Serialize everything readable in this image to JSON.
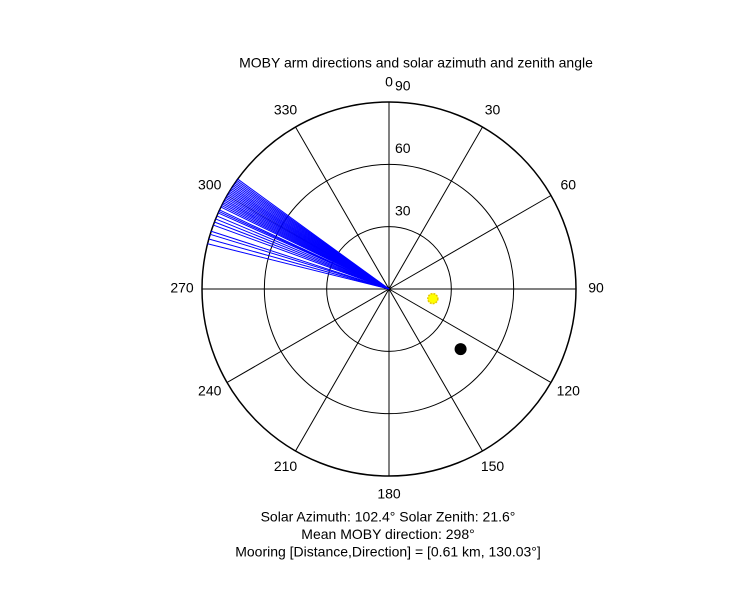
{
  "chart_data": {
    "type": "polar",
    "title": "MOBY arm directions and solar azimuth and zenith angle",
    "theta_ticks": [
      0,
      30,
      60,
      90,
      120,
      150,
      180,
      210,
      240,
      270,
      300,
      330
    ],
    "rlim": [
      0,
      90
    ],
    "rticks": [
      30,
      60,
      90
    ],
    "arm_directions": {
      "color": "#0000ff",
      "values": [
        284,
        285.5,
        287,
        288,
        290,
        291,
        292,
        293,
        294,
        294.5,
        295,
        296,
        296.5,
        297,
        297.5,
        298,
        298.5,
        299,
        299.5,
        300,
        300.5,
        301,
        301.5,
        302,
        302.5,
        303,
        303.5,
        304,
        304.5,
        305,
        305.5,
        306
      ]
    },
    "solar": {
      "azimuth": 102.4,
      "zenith": 21.6,
      "color": "#ffff00"
    },
    "mooring": {
      "direction": 130.03,
      "r": 45,
      "color": "#000000"
    },
    "annotations": [
      "Solar Azimuth: 102.4°   Solar Zenith: 21.6°",
      "Mean MOBY direction: 298°",
      "Mooring [Distance,Direction] = [0.61 km, 130.03°]"
    ]
  }
}
